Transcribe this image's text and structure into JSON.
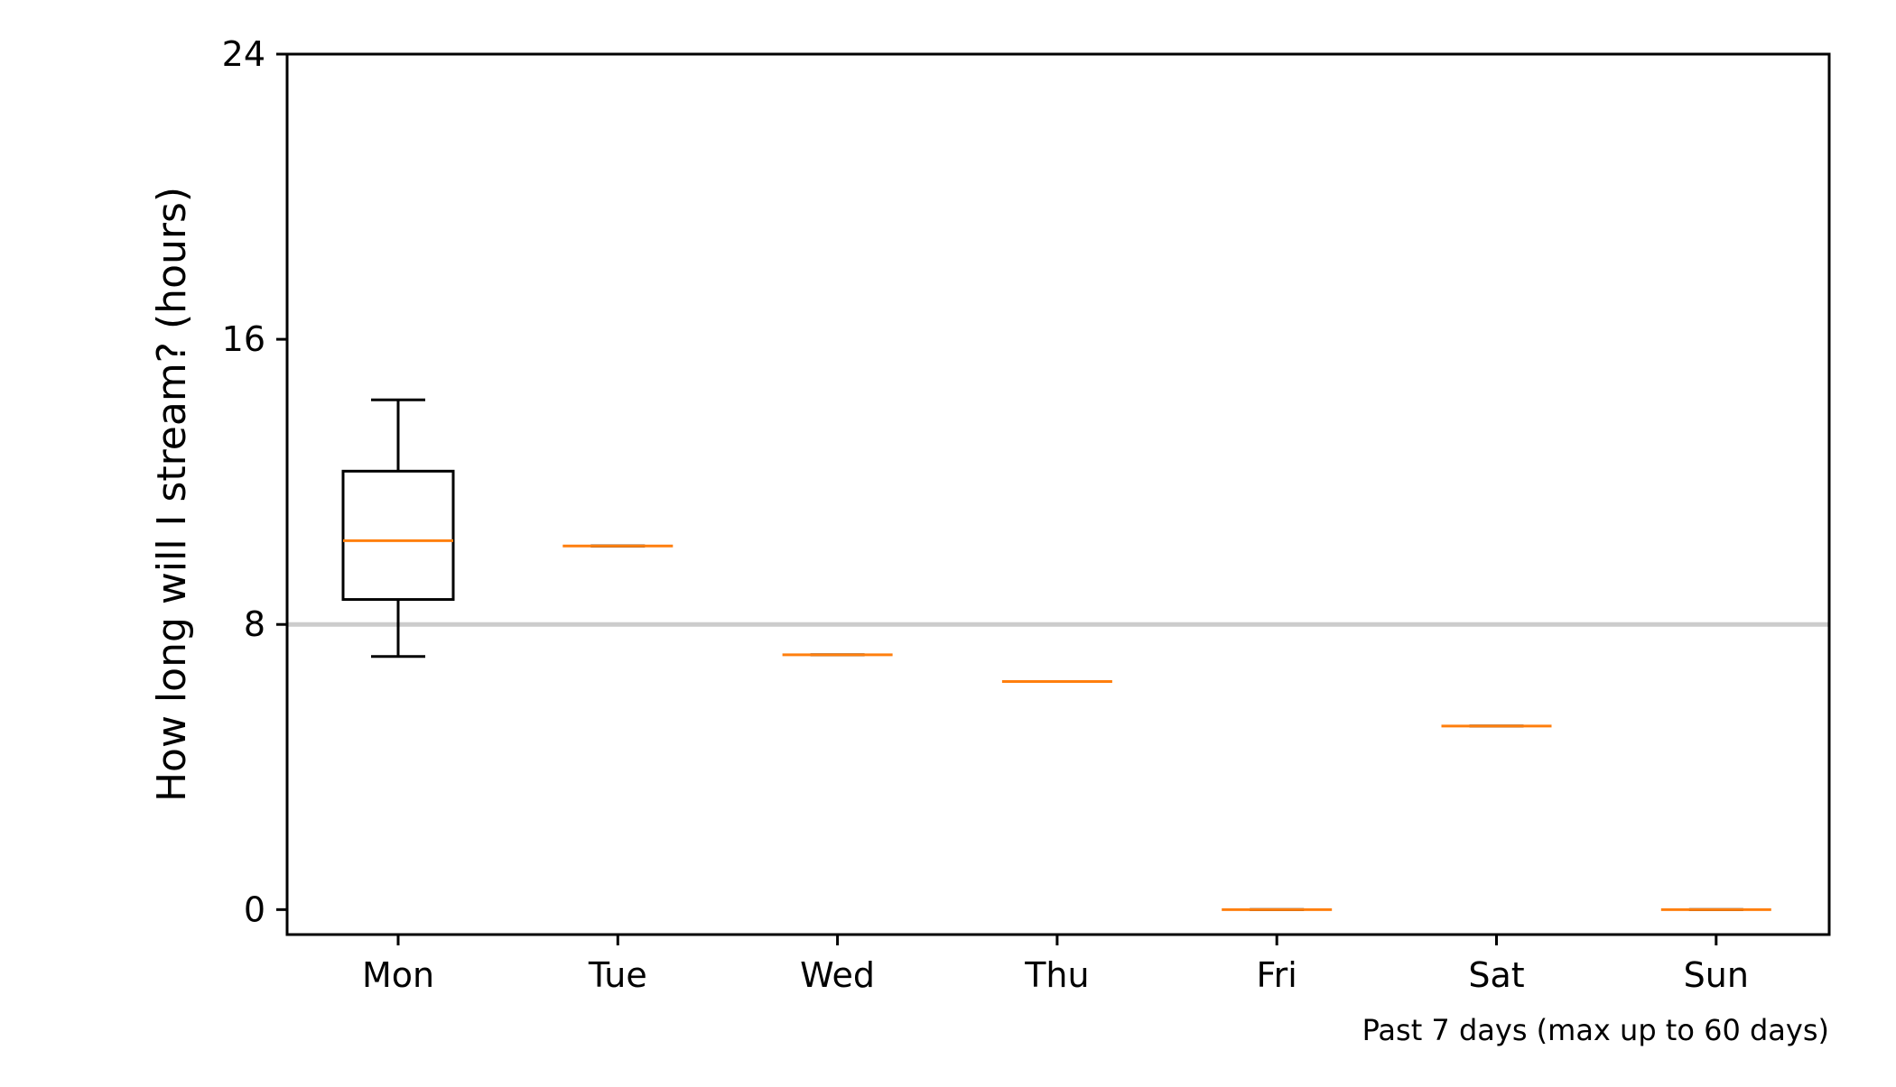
{
  "chart_data": {
    "type": "box",
    "categories": [
      "Mon",
      "Tue",
      "Wed",
      "Thu",
      "Fri",
      "Sat",
      "Sun"
    ],
    "boxes": [
      {
        "category": "Mon",
        "whislo": 7.1,
        "q1": 8.7,
        "med": 10.35,
        "q3": 12.3,
        "whishi": 14.3
      },
      {
        "category": "Tue",
        "whislo": 10.2,
        "q1": 10.2,
        "med": 10.2,
        "q3": 10.2,
        "whishi": 10.2
      },
      {
        "category": "Wed",
        "whislo": 7.15,
        "q1": 7.15,
        "med": 7.15,
        "q3": 7.15,
        "whishi": 7.15
      },
      {
        "category": "Thu",
        "whislo": 6.4,
        "q1": 6.4,
        "med": 6.4,
        "q3": 6.4,
        "whishi": 6.4
      },
      {
        "category": "Fri",
        "whislo": 0,
        "q1": 0,
        "med": 0,
        "q3": 0,
        "whishi": 0
      },
      {
        "category": "Sat",
        "whislo": 5.15,
        "q1": 5.15,
        "med": 5.15,
        "q3": 5.15,
        "whishi": 5.15
      },
      {
        "category": "Sun",
        "whislo": 0,
        "q1": 0,
        "med": 0,
        "q3": 0,
        "whishi": 0
      }
    ],
    "reference_line": {
      "y": 8,
      "color": "#cccccc"
    },
    "ylabel": "How long will I stream? (hours)",
    "xlabel": "",
    "footnote": "Past 7 days (max up to 60 days)",
    "ylim": [
      -0.7,
      24
    ],
    "yticks": [
      0,
      8,
      16,
      24
    ],
    "grid": false,
    "median_color": "#ff7f0e",
    "box_color": "#000000"
  }
}
